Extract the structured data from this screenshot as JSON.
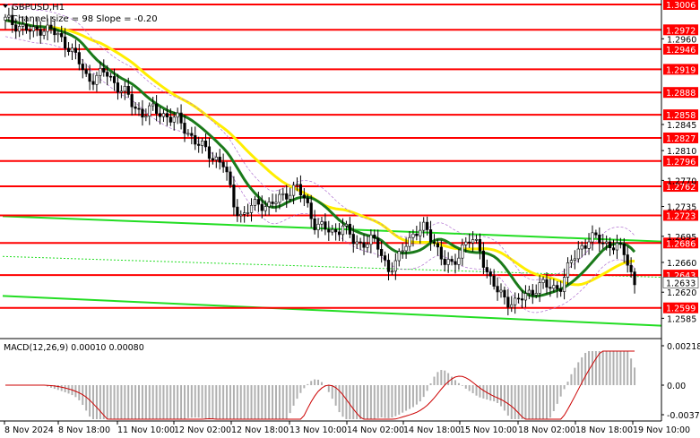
{
  "chart_data": {
    "type": "candlestick",
    "symbol": "GBPUSD,H1",
    "channel_note": "Channel size = 98 Slope = -0.20",
    "y_range": [
      1.2565,
      1.3006
    ],
    "price_ticks": [
      "1.2960",
      "1.2845",
      "1.2810",
      "1.2770",
      "1.2735",
      "1.2695",
      "1.2660",
      "1.2620",
      "1.2585"
    ],
    "current_price": "1.2633",
    "colors": {
      "level": "#ff0000",
      "channel": "#22dd22",
      "ma_fast": "#1a7a1a",
      "ma_slow": "#ffee00",
      "candle": "#000000",
      "macd_hist": "#b0b0b0",
      "macd_signal": "#cc0000"
    },
    "levels": [
      {
        "value": 1.3006,
        "label": "1.3006"
      },
      {
        "value": 1.2972,
        "label": "1.2972"
      },
      {
        "value": 1.2946,
        "label": "1.2946"
      },
      {
        "value": 1.2919,
        "label": "1.2919"
      },
      {
        "value": 1.2888,
        "label": "1.2888"
      },
      {
        "value": 1.2858,
        "label": "1.2858"
      },
      {
        "value": 1.2827,
        "label": "1.2827"
      },
      {
        "value": 1.2796,
        "label": "1.2796"
      },
      {
        "value": 1.2762,
        "label": "1.2762"
      },
      {
        "value": 1.2723,
        "label": "1.2723"
      },
      {
        "value": 1.2686,
        "label": "1.2686"
      },
      {
        "value": 1.2643,
        "label": "1.2643"
      },
      {
        "value": 1.2599,
        "label": "1.2599"
      }
    ],
    "x_labels": [
      "8 Nov 2024",
      "8 Nov 18:00",
      "11 Nov 10:00",
      "12 Nov 02:00",
      "12 Nov 18:00",
      "13 Nov 10:00",
      "14 Nov 02:00",
      "14 Nov 18:00",
      "15 Nov 10:00",
      "18 Nov 02:00",
      "18 Nov 18:00",
      "19 Nov 10:00"
    ],
    "macd": {
      "title": "MACD(12,26,9) 0.00010 0.00080",
      "ticks": [
        "0.00218",
        "0.00",
        "-0.00375"
      ]
    },
    "close_path": [
      1.2985,
      1.298,
      1.2975,
      1.2968,
      1.2975,
      1.2972,
      1.296,
      1.295,
      1.293,
      1.2905,
      1.291,
      1.2915,
      1.29,
      1.289,
      1.287,
      1.286,
      1.2865,
      1.286,
      1.2855,
      1.285,
      1.2835,
      1.282,
      1.281,
      1.28,
      1.279,
      1.274,
      1.272,
      1.2735,
      1.274,
      1.2735,
      1.2745,
      1.2755,
      1.276,
      1.274,
      1.271,
      1.2705,
      1.27,
      1.271,
      1.269,
      1.2685,
      1.269,
      1.268,
      1.265,
      1.266,
      1.269,
      1.27,
      1.2705,
      1.269,
      1.266,
      1.2655,
      1.268,
      1.269,
      1.268,
      1.264,
      1.262,
      1.261,
      1.2605,
      1.2615,
      1.2625,
      1.263,
      1.2625,
      1.263,
      1.266,
      1.268,
      1.269,
      1.2692,
      1.2685,
      1.268,
      1.2672,
      1.263
    ]
  }
}
